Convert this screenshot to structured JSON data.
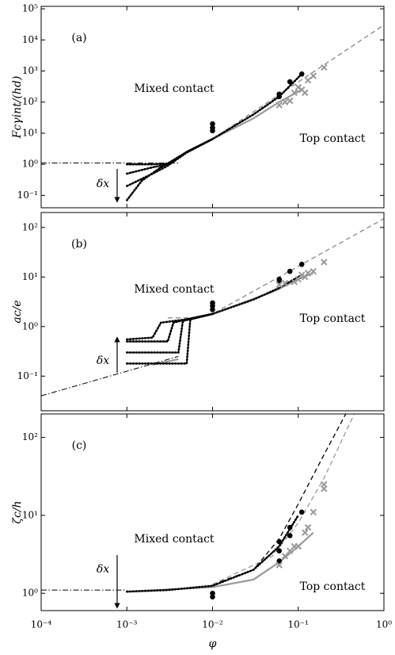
{
  "chart_data": [
    {
      "type": "line",
      "panel_label": "(a)",
      "ylabel": "Fcγint/(hd)",
      "xlim": [
        0.0001,
        1
      ],
      "xticks": [
        0.0001,
        0.001,
        0.01,
        0.1,
        1
      ],
      "log_x": true,
      "ylim": [
        0.04,
        120000
      ],
      "log_y": true,
      "yticks": [
        {
          "value": 0.1,
          "label": "10⁻¹"
        },
        {
          "value": 1,
          "label": "10⁰"
        },
        {
          "value": 10,
          "label": "10¹"
        },
        {
          "value": 100,
          "label": "10²"
        },
        {
          "value": 1000,
          "label": "10³"
        },
        {
          "value": 10000,
          "label": "10⁴"
        },
        {
          "value": 100000,
          "label": "10⁵"
        }
      ],
      "annotations": [
        "Mixed contact",
        "Top contact",
        "δx"
      ],
      "series": [
        {
          "style": "dashdot",
          "color": "#000000",
          "x": [
            0.0001,
            0.004
          ],
          "values": [
            1.1,
            1.1
          ]
        },
        {
          "style": "dashed",
          "color": "#888888",
          "x": [
            0.01,
            1
          ],
          "values": [
            6.5,
            30000
          ]
        },
        {
          "style": "solid",
          "color": "#999999",
          "x": [
            0.01,
            0.03,
            0.06,
            0.11
          ],
          "values": [
            6.5,
            30,
            100,
            250
          ]
        },
        {
          "style": "dotted",
          "color": "#000000",
          "x": [
            0.001,
            0.002,
            0.003,
            0.005,
            0.01,
            0.03,
            0.06,
            0.11
          ],
          "values": [
            1.0,
            1.0,
            1.05,
            2.5,
            6.5,
            40,
            150,
            800
          ]
        },
        {
          "style": "dotted",
          "color": "#000000",
          "x": [
            0.001,
            0.002,
            0.003,
            0.005,
            0.01
          ],
          "values": [
            0.5,
            0.8,
            1.0,
            2.5,
            6.5
          ]
        },
        {
          "style": "dotted",
          "color": "#000000",
          "x": [
            0.001,
            0.002,
            0.003,
            0.005,
            0.01
          ],
          "values": [
            0.2,
            0.5,
            0.9,
            2.4,
            6.5
          ]
        },
        {
          "style": "dotted",
          "color": "#000000",
          "x": [
            0.001,
            0.0015,
            0.0025,
            0.005,
            0.01
          ],
          "values": [
            0.07,
            0.3,
            0.8,
            2.4,
            6.5
          ]
        }
      ],
      "scatter": [
        {
          "marker": "dot",
          "color": "#000000",
          "x": [
            0.01,
            0.01,
            0.01,
            0.06,
            0.06,
            0.08,
            0.11
          ],
          "values": [
            20,
            15,
            12,
            180,
            150,
            450,
            800
          ]
        },
        {
          "marker": "cross",
          "color": "#999999",
          "x": [
            0.06,
            0.07,
            0.08,
            0.09,
            0.1,
            0.11,
            0.12,
            0.13,
            0.15,
            0.2
          ],
          "values": [
            80,
            100,
            110,
            200,
            300,
            250,
            200,
            500,
            700,
            1300
          ]
        }
      ]
    },
    {
      "type": "line",
      "panel_label": "(b)",
      "ylabel": "ac/e",
      "xlim": [
        0.0001,
        1
      ],
      "xticks": [
        0.0001,
        0.001,
        0.01,
        0.1,
        1
      ],
      "log_x": true,
      "ylim": [
        0.02,
        200
      ],
      "log_y": true,
      "yticks": [
        {
          "value": 0.1,
          "label": "10⁻¹"
        },
        {
          "value": 1,
          "label": "10⁰"
        },
        {
          "value": 10,
          "label": "10¹"
        },
        {
          "value": 100,
          "label": "10²"
        }
      ],
      "annotations": [
        "Mixed contact",
        "Top contact",
        "δx"
      ],
      "series": [
        {
          "style": "dashdot",
          "color": "#000000",
          "x": [
            0.0001,
            0.004
          ],
          "values": [
            0.04,
            0.25
          ]
        },
        {
          "style": "dashed",
          "color": "#888888",
          "x": [
            0.003,
            0.006,
            0.01,
            1
          ],
          "values": [
            1.5,
            1.5,
            1.8,
            150
          ]
        },
        {
          "style": "solid",
          "color": "#999999",
          "x": [
            0.002,
            0.004,
            null,
            0.01,
            0.05,
            0.1,
            0.15
          ],
          "values": [
            0.17,
            0.22,
            null,
            1.8,
            5,
            9,
            12
          ]
        },
        {
          "style": "dotted",
          "color": "#000000",
          "x": [
            0.001,
            0.002,
            0.0025,
            0.005,
            0.01,
            0.03,
            0.06,
            0.11
          ],
          "values": [
            0.55,
            0.6,
            1.2,
            1.4,
            1.8,
            3.5,
            6,
            11
          ]
        },
        {
          "style": "dotted",
          "color": "#000000",
          "x": [
            0.001,
            0.003,
            0.0035,
            0.005,
            0.01
          ],
          "values": [
            0.5,
            0.5,
            1.2,
            1.4,
            1.8
          ]
        },
        {
          "style": "dotted",
          "color": "#000000",
          "x": [
            0.001,
            0.004,
            0.0045,
            0.01
          ],
          "values": [
            0.3,
            0.3,
            1.3,
            1.8
          ]
        },
        {
          "style": "dotted",
          "color": "#000000",
          "x": [
            0.001,
            0.005,
            0.0055,
            0.01
          ],
          "values": [
            0.18,
            0.18,
            1.4,
            1.8
          ]
        }
      ],
      "scatter": [
        {
          "marker": "dot",
          "color": "#000000",
          "x": [
            0.01,
            0.01,
            0.01,
            0.06,
            0.06,
            0.08,
            0.11
          ],
          "values": [
            3,
            2.6,
            2.2,
            9,
            8,
            13,
            18
          ]
        },
        {
          "marker": "cross",
          "color": "#999999",
          "x": [
            0.06,
            0.07,
            0.09,
            0.1,
            0.11,
            0.12,
            0.13,
            0.15,
            0.2
          ],
          "values": [
            7,
            7.5,
            8,
            9,
            11,
            10,
            12,
            13,
            20
          ]
        }
      ]
    },
    {
      "type": "line",
      "panel_label": "(c)",
      "ylabel": "ζc/h",
      "xlabel": "φ",
      "xlim": [
        0.0001,
        1
      ],
      "log_x": true,
      "xticks": [
        {
          "value": 0.0001,
          "label": "10⁻⁴"
        },
        {
          "value": 0.001,
          "label": "10⁻³"
        },
        {
          "value": 0.01,
          "label": "10⁻²"
        },
        {
          "value": 0.1,
          "label": "10⁻¹"
        },
        {
          "value": 1,
          "label": "10⁰"
        }
      ],
      "ylim": [
        0.6,
        200
      ],
      "log_y": true,
      "yticks": [
        {
          "value": 1,
          "label": "10⁰"
        },
        {
          "value": 10,
          "label": "10¹"
        },
        {
          "value": 100,
          "label": "10²"
        }
      ],
      "annotations": [
        "Mixed contact",
        "Top contact",
        "δx"
      ],
      "series": [
        {
          "style": "dashdot",
          "color": "#000000",
          "x": [
            0.0001,
            0.001
          ],
          "values": [
            1.1,
            1.1
          ]
        },
        {
          "style": "dashed",
          "color": "#000000",
          "x": [
            0.01,
            0.03,
            0.06,
            0.1,
            0.2,
            0.4
          ],
          "values": [
            1.3,
            2,
            5,
            14,
            60,
            250
          ]
        },
        {
          "style": "dashed",
          "color": "#999999",
          "x": [
            0.01,
            0.05,
            0.1,
            0.2,
            0.45
          ],
          "values": [
            1.3,
            3,
            8,
            30,
            200
          ]
        },
        {
          "style": "solid",
          "color": "#999999",
          "x": [
            0.001,
            0.01,
            0.03,
            0.06,
            0.1,
            0.15
          ],
          "values": [
            1.05,
            1.2,
            1.5,
            2.5,
            4,
            6
          ]
        },
        {
          "style": "dotted",
          "color": "#000000",
          "x": [
            0.001,
            0.003,
            0.01,
            0.03,
            0.06,
            0.1
          ],
          "values": [
            1.05,
            1.1,
            1.25,
            2,
            4,
            10
          ]
        }
      ],
      "scatter": [
        {
          "marker": "dot",
          "color": "#000000",
          "x": [
            0.01,
            0.01,
            0.06,
            0.06,
            0.06,
            0.08,
            0.08,
            0.11
          ],
          "values": [
            0.9,
            1.0,
            2.6,
            3.5,
            4.6,
            5.5,
            7,
            11
          ]
        },
        {
          "marker": "cross",
          "color": "#999999",
          "x": [
            0.06,
            0.07,
            0.08,
            0.09,
            0.1,
            0.12,
            0.13,
            0.15,
            0.2,
            0.2
          ],
          "values": [
            2.3,
            3,
            3.5,
            4,
            4,
            6,
            7,
            11,
            25,
            22
          ]
        }
      ]
    }
  ]
}
